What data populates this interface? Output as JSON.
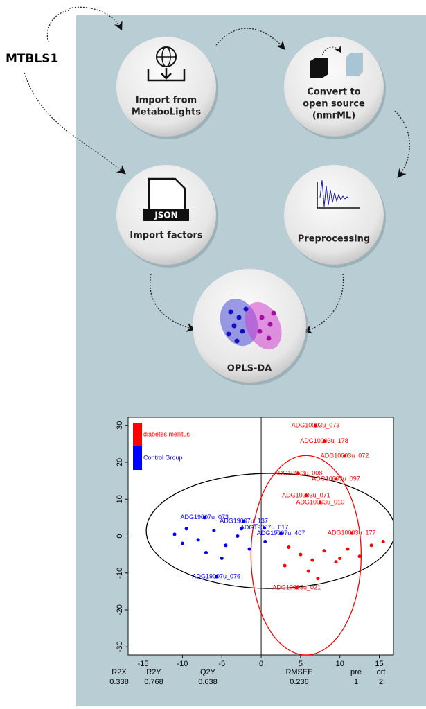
{
  "source_label": "MTBLS1",
  "nodes": [
    {
      "lines": [
        "Import from",
        "MetaboLights"
      ]
    },
    {
      "lines": [
        "Convert to",
        "open source",
        "(nmrML)"
      ]
    },
    {
      "lines": [
        "Import factors"
      ]
    },
    {
      "lines": [
        "Preprocessing"
      ]
    },
    {
      "lines": [
        "OPLS-DA"
      ]
    }
  ],
  "icons": {
    "json_label": "JSON"
  },
  "chart_data": {
    "type": "scatter",
    "xlim": [
      -16.9,
      16.8
    ],
    "ylim": [
      -32.2,
      32.2
    ],
    "xticks": [
      -15,
      -10,
      -5,
      0,
      5,
      10,
      15
    ],
    "yticks": [
      -30,
      -20,
      -10,
      0,
      10,
      20,
      30
    ],
    "series": [
      {
        "name": "diabetes mellitus",
        "color": "#ff0000",
        "x": [
          6.9,
          8.0,
          10.6,
          4.7,
          9.5,
          5.7,
          7.5,
          11.5,
          4.5,
          3.5,
          5.0,
          6.5,
          8.0,
          9.5,
          11.0,
          12.5,
          14.0,
          15.5,
          3.0,
          6.0,
          7.2,
          10.0
        ],
        "values": [
          29.9,
          25.7,
          21.7,
          17.0,
          15.5,
          11.0,
          9.1,
          0.8,
          -14.0,
          -3.0,
          -5.0,
          -6.5,
          -4.0,
          -7.0,
          -3.5,
          -5.5,
          -2.5,
          -1.5,
          -8.0,
          -9.5,
          -11.5,
          -6.0
        ],
        "labels": [
          "ADG10003u_073",
          "ADG10003u_178",
          "ADG10003u_072",
          "ADG10003u_008",
          "ADG10003u_097",
          "ADG10003u_071",
          "ADG10003u_010",
          "ADG10003u_177",
          "ADG10003u_021",
          null,
          null,
          null,
          null,
          null,
          null,
          null,
          null,
          null,
          null,
          null,
          null,
          null
        ]
      },
      {
        "name": "Control Group",
        "color": "#0000ff",
        "x": [
          -5.7,
          -7.2,
          -2.2,
          0.4,
          2.5,
          -11.0,
          -9.5,
          -8.0,
          -6.0,
          -4.5,
          -3.0,
          -1.5,
          -10.0,
          -7.0,
          -2.5,
          0.5,
          -5.0
        ],
        "values": [
          -11.0,
          5.0,
          4.0,
          2.2,
          0.7,
          0.5,
          2.0,
          -1.0,
          1.5,
          -2.5,
          0.0,
          -3.5,
          -2.0,
          -4.5,
          2.0,
          -1.5,
          -6.0
        ],
        "labels": [
          "ADG19007u_076",
          "ADG19007u_073",
          "ADG19007u_137",
          "ADG19007u_017",
          "ADG19007u_407",
          null,
          null,
          null,
          null,
          null,
          null,
          null,
          null,
          null,
          null,
          null,
          null
        ]
      }
    ],
    "ellipses": [
      {
        "cx": 1.2,
        "cy": 1.4,
        "rx": 15.8,
        "ry": 15.6,
        "color": "#000000"
      },
      {
        "cx": 5.7,
        "cy": -5.2,
        "rx": 7.0,
        "ry": 27.0,
        "color": "#ff0000"
      }
    ],
    "stats": [
      {
        "name": "R2X",
        "value": "0.338"
      },
      {
        "name": "R2Y",
        "value": "0.768"
      },
      {
        "name": "Q2Y",
        "value": "0.638"
      },
      {
        "name": "RMSEE",
        "value": "0.236"
      },
      {
        "name": "pre",
        "value": "1"
      },
      {
        "name": "ort",
        "value": "2"
      }
    ]
  }
}
